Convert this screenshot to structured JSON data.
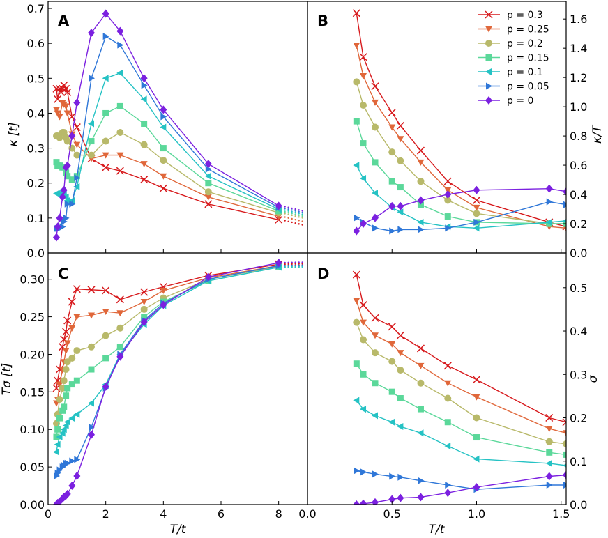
{
  "colors": {
    "0.3": "#d7191c",
    "0.25": "#e0673a",
    "0.2": "#b8b96a",
    "0.15": "#5bd89a",
    "0.1": "#25c2c4",
    "0.05": "#2f77d8",
    "0": "#7b20e0"
  },
  "legend": [
    {
      "p": "0.3",
      "label": "p = 0.3",
      "marker": "x"
    },
    {
      "p": "0.25",
      "label": "p = 0.25",
      "marker": "tri_down"
    },
    {
      "p": "0.2",
      "label": "p = 0.2",
      "marker": "circle"
    },
    {
      "p": "0.15",
      "label": "p = 0.15",
      "marker": "square"
    },
    {
      "p": "0.1",
      "label": "p = 0.1",
      "marker": "tri_left"
    },
    {
      "p": "0.05",
      "label": "p = 0.05",
      "marker": "tri_right"
    },
    {
      "p": "0",
      "label": "p = 0",
      "marker": "diamond"
    }
  ],
  "chart_data": [
    {
      "panel": "A",
      "type": "line",
      "xlabel": "",
      "ylabel": "κ [t]",
      "xlim": [
        0,
        9
      ],
      "ylim": [
        0,
        0.72
      ],
      "xticks": [
        0,
        2,
        4,
        6,
        8
      ],
      "yticks": [
        0.0,
        0.1,
        0.2,
        0.3,
        0.4,
        0.5,
        0.6,
        0.7
      ],
      "ytick_labels": [
        "0.0",
        "0.1",
        "0.2",
        "0.3",
        "0.4",
        "0.5",
        "0.6",
        "0.7"
      ],
      "show_xticklabels": false,
      "series": [
        {
          "p": "0.3",
          "x": [
            0.29,
            0.33,
            0.4,
            0.45,
            0.5,
            0.55,
            0.62,
            0.67,
            0.83,
            1.0,
            1.5,
            2.0,
            2.5,
            3.33,
            4.0,
            5.56,
            8.0
          ],
          "y": [
            0.47,
            0.44,
            0.47,
            0.46,
            0.47,
            0.48,
            0.47,
            0.46,
            0.39,
            0.36,
            0.27,
            0.245,
            0.235,
            0.21,
            0.185,
            0.14,
            0.095
          ]
        },
        {
          "p": "0.25",
          "x": [
            0.29,
            0.33,
            0.4,
            0.5,
            0.55,
            0.62,
            0.67,
            0.83,
            1.0,
            1.5,
            2.0,
            2.5,
            3.33,
            4.0,
            5.56,
            8.0
          ],
          "y": [
            0.41,
            0.4,
            0.39,
            0.43,
            0.425,
            0.42,
            0.4,
            0.34,
            0.31,
            0.27,
            0.28,
            0.28,
            0.255,
            0.22,
            0.16,
            0.105
          ]
        },
        {
          "p": "0.2",
          "x": [
            0.29,
            0.33,
            0.4,
            0.5,
            0.55,
            0.62,
            0.67,
            0.83,
            1.0,
            1.5,
            2.0,
            2.5,
            3.33,
            4.0,
            5.56,
            8.0
          ],
          "y": [
            0.335,
            0.335,
            0.33,
            0.345,
            0.345,
            0.33,
            0.32,
            0.3,
            0.28,
            0.28,
            0.32,
            0.345,
            0.31,
            0.265,
            0.175,
            0.115
          ]
        },
        {
          "p": "0.15",
          "x": [
            0.29,
            0.33,
            0.4,
            0.5,
            0.55,
            0.62,
            0.67,
            0.83,
            1.0,
            1.5,
            2.0,
            2.5,
            3.33,
            4.0,
            5.56,
            8.0
          ],
          "y": [
            0.26,
            0.25,
            0.25,
            0.245,
            0.245,
            0.23,
            0.22,
            0.21,
            0.22,
            0.32,
            0.4,
            0.42,
            0.37,
            0.3,
            0.2,
            0.12
          ]
        },
        {
          "p": "0.1",
          "x": [
            0.29,
            0.33,
            0.4,
            0.5,
            0.55,
            0.62,
            0.67,
            0.83,
            1.0,
            1.5,
            2.0,
            2.5,
            3.33,
            4.0,
            5.56,
            8.0
          ],
          "y": [
            0.17,
            0.17,
            0.17,
            0.18,
            0.17,
            0.16,
            0.15,
            0.15,
            0.19,
            0.37,
            0.5,
            0.515,
            0.44,
            0.36,
            0.22,
            0.125
          ]
        },
        {
          "p": "0.05",
          "x": [
            0.29,
            0.33,
            0.4,
            0.5,
            0.55,
            0.62,
            0.67,
            0.83,
            1.0,
            1.5,
            2.0,
            2.5,
            3.33,
            4.0,
            5.56,
            8.0
          ],
          "y": [
            0.07,
            0.07,
            0.07,
            0.075,
            0.09,
            0.1,
            0.14,
            0.14,
            0.215,
            0.5,
            0.62,
            0.595,
            0.48,
            0.39,
            0.24,
            0.13
          ]
        },
        {
          "p": "0",
          "x": [
            0.29,
            0.33,
            0.4,
            0.5,
            0.55,
            0.62,
            0.67,
            0.83,
            1.0,
            1.5,
            2.0,
            2.5,
            3.33,
            4.0,
            5.56,
            8.0
          ],
          "y": [
            0.045,
            0.075,
            0.1,
            0.16,
            0.18,
            0.245,
            0.25,
            0.335,
            0.43,
            0.63,
            0.685,
            0.635,
            0.5,
            0.41,
            0.255,
            0.135
          ]
        }
      ]
    },
    {
      "panel": "B",
      "type": "line",
      "xlabel": "",
      "ylabel": "κ/T",
      "xlim": [
        0,
        1.53
      ],
      "ylim": [
        0,
        1.72
      ],
      "xticks": [
        0,
        0.5,
        1.0,
        1.5
      ],
      "yticks": [
        0.0,
        0.2,
        0.4,
        0.6,
        0.8,
        1.0,
        1.2,
        1.4,
        1.6
      ],
      "ytick_labels": [
        "0.0",
        "0.2",
        "0.4",
        "0.6",
        "0.8",
        "1.0",
        "1.2",
        "1.4",
        "1.6"
      ],
      "yaxis_side": "right",
      "show_xticklabels": false,
      "series": [
        {
          "p": "0.3",
          "x": [
            0.29,
            0.33,
            0.4,
            0.5,
            0.55,
            0.67,
            0.83,
            1.0,
            1.43,
            1.53
          ],
          "y": [
            1.64,
            1.34,
            1.14,
            0.96,
            0.87,
            0.7,
            0.49,
            0.36,
            0.21,
            0.18
          ]
        },
        {
          "p": "0.25",
          "x": [
            0.29,
            0.33,
            0.4,
            0.5,
            0.55,
            0.67,
            0.83,
            1.0,
            1.43,
            1.53
          ],
          "y": [
            1.42,
            1.21,
            1.03,
            0.86,
            0.78,
            0.62,
            0.43,
            0.31,
            0.18,
            0.17
          ]
        },
        {
          "p": "0.2",
          "x": [
            0.29,
            0.33,
            0.4,
            0.5,
            0.55,
            0.67,
            0.83,
            1.0,
            1.43,
            1.53
          ],
          "y": [
            1.17,
            1.01,
            0.86,
            0.69,
            0.63,
            0.49,
            0.36,
            0.27,
            0.2,
            0.2
          ]
        },
        {
          "p": "0.15",
          "x": [
            0.29,
            0.33,
            0.4,
            0.5,
            0.55,
            0.67,
            0.83,
            1.0,
            1.43,
            1.53
          ],
          "y": [
            0.9,
            0.75,
            0.62,
            0.49,
            0.45,
            0.33,
            0.25,
            0.21,
            0.2,
            0.2
          ]
        },
        {
          "p": "0.1",
          "x": [
            0.29,
            0.33,
            0.4,
            0.5,
            0.55,
            0.67,
            0.83,
            1.0,
            1.43,
            1.53
          ],
          "y": [
            0.6,
            0.51,
            0.41,
            0.31,
            0.28,
            0.21,
            0.18,
            0.17,
            0.21,
            0.22
          ]
        },
        {
          "p": "0.05",
          "x": [
            0.29,
            0.33,
            0.4,
            0.5,
            0.55,
            0.67,
            0.83,
            1.0,
            1.43,
            1.53
          ],
          "y": [
            0.24,
            0.21,
            0.17,
            0.15,
            0.16,
            0.16,
            0.17,
            0.21,
            0.35,
            0.33
          ]
        },
        {
          "p": "0",
          "x": [
            0.29,
            0.33,
            0.4,
            0.5,
            0.55,
            0.67,
            0.83,
            1.0,
            1.43,
            1.53
          ],
          "y": [
            0.15,
            0.2,
            0.24,
            0.32,
            0.32,
            0.36,
            0.4,
            0.43,
            0.44,
            0.42
          ]
        }
      ]
    },
    {
      "panel": "C",
      "type": "line",
      "xlabel": "T/t",
      "ylabel": "Tσ [t]",
      "xlim": [
        0,
        9
      ],
      "ylim": [
        0,
        0.335
      ],
      "xticks": [
        0,
        2,
        4,
        6,
        8
      ],
      "yticks": [
        0.0,
        0.05,
        0.1,
        0.15,
        0.2,
        0.25,
        0.3
      ],
      "xtick_labels": [
        "0",
        "2",
        "4",
        "6",
        "8"
      ],
      "ytick_labels": [
        "0.00",
        "0.05",
        "0.10",
        "0.15",
        "0.20",
        "0.25",
        "0.30"
      ],
      "series": [
        {
          "p": "0.3",
          "x": [
            0.29,
            0.33,
            0.4,
            0.5,
            0.55,
            0.62,
            0.67,
            0.83,
            1.0,
            1.5,
            2.0,
            2.5,
            3.33,
            4.0,
            5.56,
            8.0
          ],
          "y": [
            0.155,
            0.165,
            0.18,
            0.21,
            0.22,
            0.23,
            0.245,
            0.27,
            0.287,
            0.286,
            0.285,
            0.273,
            0.283,
            0.29,
            0.305,
            0.32
          ]
        },
        {
          "p": "0.25",
          "x": [
            0.29,
            0.33,
            0.4,
            0.5,
            0.55,
            0.62,
            0.67,
            0.83,
            1.0,
            1.5,
            2.0,
            2.5,
            3.33,
            4.0,
            5.56,
            8.0
          ],
          "y": [
            0.135,
            0.14,
            0.16,
            0.18,
            0.19,
            0.205,
            0.215,
            0.235,
            0.25,
            0.252,
            0.257,
            0.255,
            0.27,
            0.285,
            0.302,
            0.318
          ]
        },
        {
          "p": "0.2",
          "x": [
            0.29,
            0.33,
            0.4,
            0.5,
            0.55,
            0.62,
            0.67,
            0.83,
            1.0,
            1.5,
            2.0,
            2.5,
            3.33,
            4.0,
            5.56,
            8.0
          ],
          "y": [
            0.108,
            0.12,
            0.14,
            0.155,
            0.165,
            0.18,
            0.19,
            0.195,
            0.205,
            0.21,
            0.225,
            0.235,
            0.26,
            0.275,
            0.3,
            0.317
          ]
        },
        {
          "p": "0.15",
          "x": [
            0.29,
            0.33,
            0.4,
            0.5,
            0.55,
            0.62,
            0.67,
            0.83,
            1.0,
            1.5,
            2.0,
            2.5,
            3.33,
            4.0,
            5.56,
            8.0
          ],
          "y": [
            0.09,
            0.1,
            0.115,
            0.125,
            0.13,
            0.145,
            0.155,
            0.16,
            0.165,
            0.18,
            0.195,
            0.21,
            0.25,
            0.27,
            0.298,
            0.316
          ]
        },
        {
          "p": "0.1",
          "x": [
            0.29,
            0.33,
            0.4,
            0.5,
            0.55,
            0.62,
            0.67,
            0.83,
            1.0,
            1.5,
            2.0,
            2.5,
            3.33,
            4.0,
            5.56,
            8.0
          ],
          "y": [
            0.07,
            0.08,
            0.09,
            0.095,
            0.1,
            0.105,
            0.11,
            0.115,
            0.12,
            0.135,
            0.16,
            0.2,
            0.24,
            0.265,
            0.298,
            0.316
          ]
        },
        {
          "p": "0.05",
          "x": [
            0.29,
            0.33,
            0.4,
            0.5,
            0.55,
            0.62,
            0.67,
            0.83,
            1.0,
            1.5,
            2.0,
            2.5,
            3.33,
            4.0,
            5.56,
            8.0
          ],
          "y": [
            0.038,
            0.042,
            0.046,
            0.05,
            0.052,
            0.055,
            0.055,
            0.058,
            0.06,
            0.103,
            0.155,
            0.2,
            0.245,
            0.268,
            0.3,
            0.318
          ]
        },
        {
          "p": "0",
          "x": [
            0.29,
            0.33,
            0.4,
            0.5,
            0.55,
            0.62,
            0.67,
            0.83,
            1.0,
            1.5,
            2.0,
            2.5,
            3.33,
            4.0,
            5.56,
            8.0
          ],
          "y": [
            0.0,
            0.002,
            0.004,
            0.008,
            0.01,
            0.012,
            0.014,
            0.025,
            0.038,
            0.093,
            0.157,
            0.197,
            0.243,
            0.266,
            0.303,
            0.322
          ]
        }
      ]
    },
    {
      "panel": "D",
      "type": "line",
      "xlabel": "T/t",
      "ylabel": "σ",
      "xlim": [
        0,
        1.53
      ],
      "ylim": [
        0,
        0.58
      ],
      "xticks": [
        0,
        0.5,
        1.0,
        1.5
      ],
      "yticks": [
        0.0,
        0.1,
        0.2,
        0.3,
        0.4,
        0.5
      ],
      "xtick_labels": [
        "0.0",
        "0.5",
        "1.0",
        "1.5"
      ],
      "ytick_labels": [
        "0.0",
        "0.1",
        "0.2",
        "0.3",
        "0.4",
        "0.5"
      ],
      "yaxis_side": "right",
      "series": [
        {
          "p": "0.3",
          "x": [
            0.29,
            0.33,
            0.4,
            0.5,
            0.55,
            0.67,
            0.83,
            1.0,
            1.43,
            1.53
          ],
          "y": [
            0.53,
            0.46,
            0.43,
            0.41,
            0.39,
            0.36,
            0.32,
            0.288,
            0.2,
            0.19
          ]
        },
        {
          "p": "0.25",
          "x": [
            0.29,
            0.33,
            0.4,
            0.5,
            0.55,
            0.67,
            0.83,
            1.0,
            1.43,
            1.53
          ],
          "y": [
            0.47,
            0.42,
            0.39,
            0.37,
            0.35,
            0.32,
            0.28,
            0.248,
            0.175,
            0.165
          ]
        },
        {
          "p": "0.2",
          "x": [
            0.29,
            0.33,
            0.4,
            0.5,
            0.55,
            0.67,
            0.83,
            1.0,
            1.43,
            1.53
          ],
          "y": [
            0.42,
            0.38,
            0.35,
            0.33,
            0.31,
            0.28,
            0.245,
            0.2,
            0.145,
            0.14
          ]
        },
        {
          "p": "0.15",
          "x": [
            0.29,
            0.33,
            0.4,
            0.5,
            0.55,
            0.67,
            0.83,
            1.0,
            1.43,
            1.53
          ],
          "y": [
            0.325,
            0.3,
            0.28,
            0.26,
            0.245,
            0.22,
            0.19,
            0.155,
            0.12,
            0.115
          ]
        },
        {
          "p": "0.1",
          "x": [
            0.29,
            0.33,
            0.4,
            0.5,
            0.55,
            0.67,
            0.83,
            1.0,
            1.43,
            1.53
          ],
          "y": [
            0.24,
            0.22,
            0.205,
            0.19,
            0.18,
            0.165,
            0.135,
            0.105,
            0.095,
            0.09
          ]
        },
        {
          "p": "0.05",
          "x": [
            0.29,
            0.33,
            0.4,
            0.5,
            0.55,
            0.67,
            0.83,
            1.0,
            1.43,
            1.53
          ],
          "y": [
            0.078,
            0.075,
            0.07,
            0.065,
            0.063,
            0.055,
            0.045,
            0.035,
            0.045,
            0.045
          ]
        },
        {
          "p": "0",
          "x": [
            0.29,
            0.33,
            0.4,
            0.5,
            0.55,
            0.67,
            0.83,
            1.0,
            1.43,
            1.53
          ],
          "y": [
            0.0,
            0.002,
            0.005,
            0.012,
            0.015,
            0.017,
            0.027,
            0.04,
            0.065,
            0.068
          ]
        }
      ]
    }
  ]
}
